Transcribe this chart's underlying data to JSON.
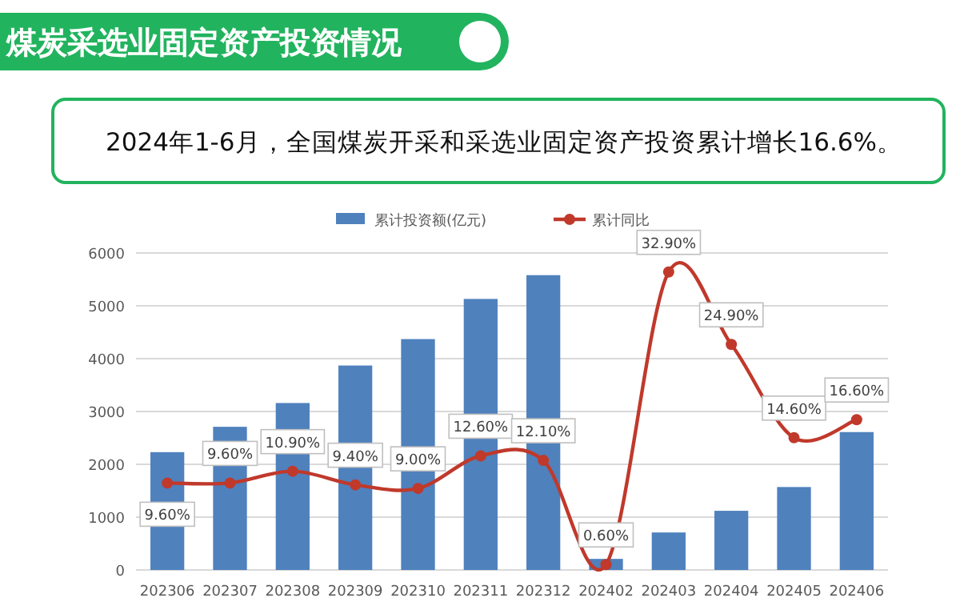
{
  "chart_data": {
    "type": "bar",
    "title": "煤炭采选业固定资产投资情况",
    "subtitle": "2024年1-6月，全国煤炭开采和采选业固定资产投资累计增长16.6%。",
    "categories": [
      "202306",
      "202307",
      "202308",
      "202309",
      "202310",
      "202311",
      "202312",
      "202402",
      "202403",
      "202404",
      "202405",
      "202406"
    ],
    "series": [
      {
        "name": "累计投资额(亿元)",
        "color": "#4f81bd",
        "values": [
          2230,
          2710,
          3160,
          3870,
          4370,
          5130,
          5580,
          210,
          710,
          1120,
          1570,
          2610
        ]
      },
      {
        "name": "累计同比",
        "type": "line",
        "axis": "y2",
        "color": "#c0392b",
        "marker": "circle",
        "values": [
          9.6,
          9.6,
          10.9,
          9.4,
          9.0,
          12.6,
          12.1,
          0.6,
          32.9,
          24.9,
          14.6,
          16.6
        ],
        "value_labels": [
          "9.60%",
          "9.60%",
          "10.90%",
          "9.40%",
          "9.00%",
          "12.60%",
          "12.10%",
          "0.60%",
          "32.90%",
          "24.90%",
          "14.60%",
          "16.60%"
        ]
      }
    ],
    "ylim": [
      0,
      6000
    ],
    "yticks": [
      0,
      1000,
      2000,
      3000,
      4000,
      5000,
      6000
    ],
    "y2lim": [
      0,
      35
    ],
    "grid": "y",
    "legend": "top"
  }
}
